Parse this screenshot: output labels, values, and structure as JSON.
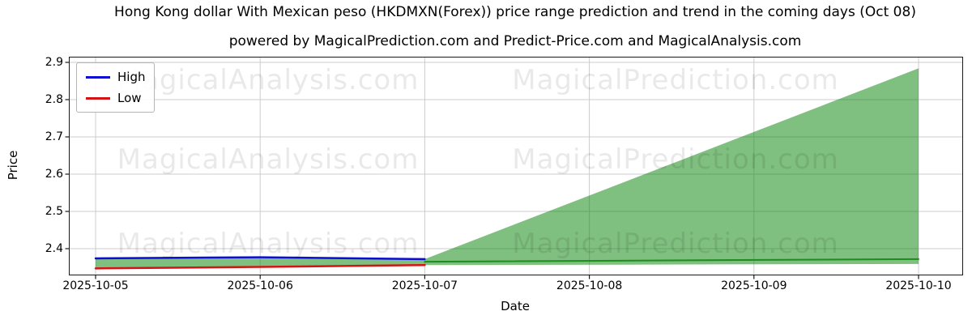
{
  "watermarks": {
    "left_text": "MagicalAnalysis.com",
    "right_text": "MagicalPrediction.com"
  },
  "chart_data": {
    "type": "line",
    "title": "Hong Kong dollar With Mexican peso (HKDMXN(Forex)) price range prediction and trend in the coming days (Oct 08)",
    "subtitle": "powered by MagicalPrediction.com and Predict-Price.com and MagicalAnalysis.com",
    "xlabel": "Date",
    "ylabel": "Price",
    "x_categories": [
      "2025-10-05",
      "2025-10-06",
      "2025-10-07",
      "2025-10-08",
      "2025-10-09",
      "2025-10-10"
    ],
    "yticks": [
      2.4,
      2.5,
      2.6,
      2.7,
      2.8,
      2.9
    ],
    "ylim": [
      2.33,
      2.913
    ],
    "grid": true,
    "grid_color": "#cccccc",
    "legend_position": "upper left",
    "series": [
      {
        "name": "High",
        "color": "#0d0dd4",
        "width": 2.5,
        "x": [
          "2025-10-05",
          "2025-10-06",
          "2025-10-07"
        ],
        "values": [
          2.374,
          2.377,
          2.372
        ]
      },
      {
        "name": "Low",
        "color": "#d41414",
        "width": 2.5,
        "x": [
          "2025-10-05",
          "2025-10-06",
          "2025-10-07"
        ],
        "values": [
          2.347,
          2.351,
          2.356
        ]
      },
      {
        "name": "prediction-median",
        "color": "#1e8c1e",
        "width": 2,
        "x": [
          "2025-10-07",
          "2025-10-10"
        ],
        "values": [
          2.365,
          2.372
        ]
      }
    ],
    "band": {
      "name": "prediction-range",
      "color": "#008000",
      "opacity": 0.5,
      "upper": {
        "x": [
          "2025-10-05",
          "2025-10-06",
          "2025-10-07",
          "2025-10-10"
        ],
        "values": [
          2.374,
          2.377,
          2.372,
          2.884
        ]
      },
      "lower": {
        "x": [
          "2025-10-05",
          "2025-10-06",
          "2025-10-07",
          "2025-10-10"
        ],
        "values": [
          2.347,
          2.351,
          2.356,
          2.359
        ]
      }
    }
  }
}
